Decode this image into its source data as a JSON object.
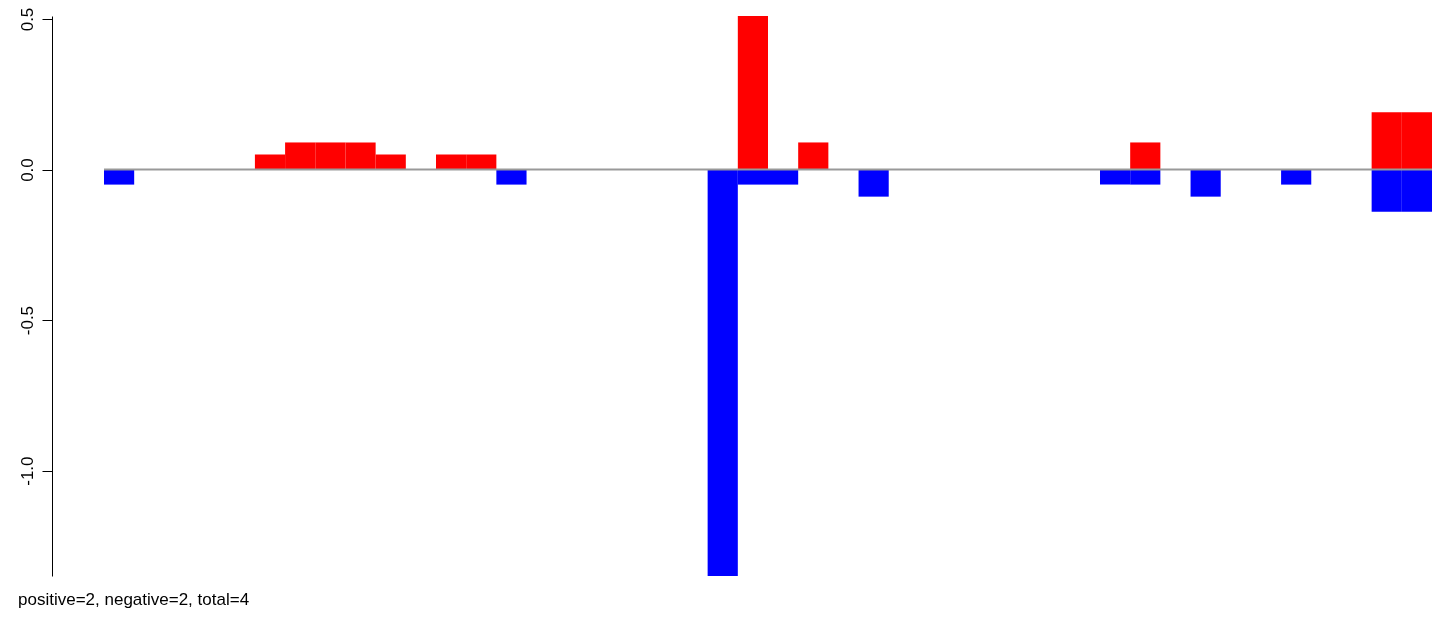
{
  "chart_data": {
    "type": "bar",
    "categories": [
      null,
      null,
      null,
      null,
      null,
      null,
      null,
      null,
      null,
      null,
      null,
      null,
      null,
      null,
      null,
      null,
      null,
      null,
      null,
      null,
      null,
      null,
      null,
      null,
      null,
      null,
      null,
      null,
      null,
      null,
      null,
      null,
      null,
      null,
      null,
      null,
      null,
      null,
      null,
      null,
      null,
      null,
      null,
      null
    ],
    "series": [
      {
        "color": "#ff0000",
        "values": [
          null,
          null,
          null,
          null,
          null,
          0.05,
          0.09,
          0.09,
          0.09,
          0.05,
          null,
          0.05,
          0.05,
          null,
          null,
          null,
          null,
          null,
          null,
          null,
          null,
          0.51,
          null,
          0.09,
          null,
          null,
          null,
          null,
          null,
          null,
          null,
          null,
          null,
          null,
          0.09,
          null,
          null,
          null,
          null,
          null,
          null,
          null,
          0.19,
          0.19
        ]
      },
      {
        "color": "#0000ff",
        "values": [
          -0.05,
          null,
          null,
          null,
          null,
          null,
          null,
          null,
          null,
          null,
          null,
          null,
          null,
          -0.05,
          null,
          null,
          null,
          null,
          null,
          null,
          -1.35,
          -0.05,
          -0.05,
          null,
          null,
          -0.09,
          null,
          null,
          null,
          null,
          null,
          null,
          null,
          -0.05,
          -0.05,
          null,
          -0.09,
          null,
          null,
          -0.05,
          null,
          null,
          -0.14,
          -0.14
        ]
      }
    ],
    "ylim": [
      -1.35,
      0.51
    ],
    "yticks": [
      {
        "value": -1,
        "label": "-1.0"
      },
      {
        "value": -0.5,
        "label": "-0.5"
      },
      {
        "value": 0,
        "label": "0.0"
      },
      {
        "value": 0.5,
        "label": "0.5"
      }
    ],
    "tick_labels": "y",
    "ref_lines": [
      {
        "axis": "y",
        "value": 0,
        "color": "#999999"
      }
    ],
    "annotations": [
      "positive=2, negative=2, total=4"
    ]
  }
}
